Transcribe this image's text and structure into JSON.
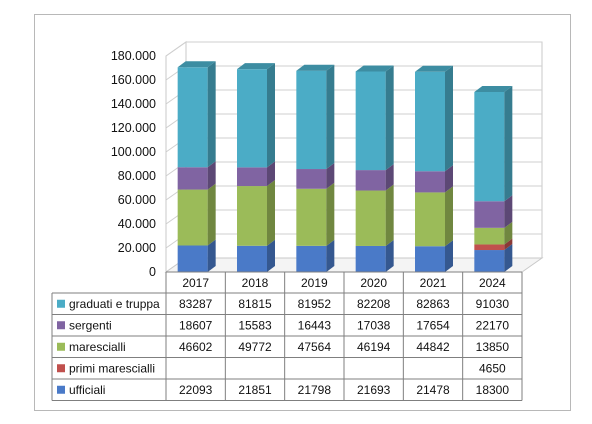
{
  "chart_data": {
    "type": "bar",
    "stacked": true,
    "three_d": true,
    "categories": [
      "2017",
      "2018",
      "2019",
      "2020",
      "2021",
      "2024"
    ],
    "series": [
      {
        "name": "ufficiali",
        "color": "#4a7ac8",
        "values": [
          22093,
          21851,
          21798,
          21693,
          21478,
          18300
        ]
      },
      {
        "name": "primi marescialli",
        "color": "#c0504d",
        "values": [
          null,
          null,
          null,
          null,
          null,
          4650
        ]
      },
      {
        "name": "marescialli",
        "color": "#9bbb59",
        "values": [
          46602,
          49772,
          47564,
          46194,
          44842,
          13850
        ]
      },
      {
        "name": "sergenti",
        "color": "#8064a2",
        "values": [
          18607,
          15583,
          16443,
          17038,
          17654,
          22170
        ]
      },
      {
        "name": "graduati e truppa",
        "color": "#4bacc6",
        "values": [
          83287,
          81815,
          81952,
          82208,
          82863,
          91030
        ]
      }
    ],
    "table_row_order": [
      "graduati e truppa",
      "sergenti",
      "marescialli",
      "primi marescialli",
      "ufficiali"
    ],
    "yticks": [
      "0",
      "20.000",
      "40.000",
      "60.000",
      "80.000",
      "100.000",
      "120.000",
      "140.000",
      "160.000",
      "180.000"
    ],
    "ylim": [
      0,
      180000
    ],
    "grid": true,
    "legend": "data-table-below"
  }
}
